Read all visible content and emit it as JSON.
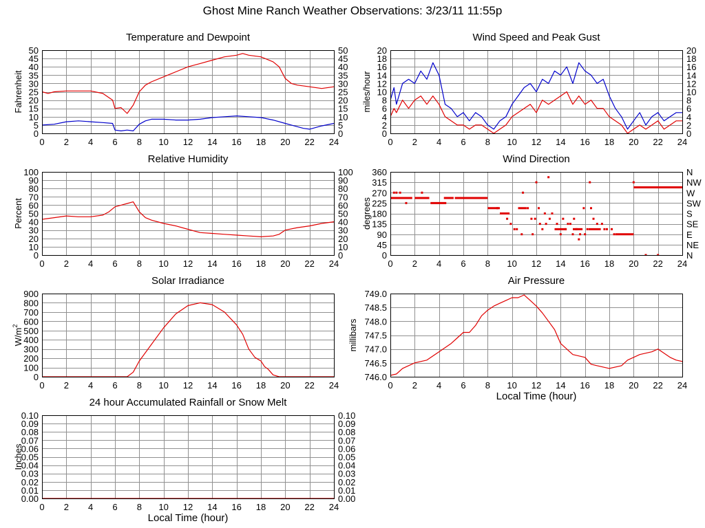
{
  "page_title": "Ghost Mine Ranch Weather Observations: 3/23/11 11:55p",
  "colors": {
    "red": "#e00000",
    "blue": "#0000cc",
    "grid": "#909090",
    "frame": "#000000"
  },
  "chart_data": [
    {
      "id": "temp",
      "type": "line",
      "title": "Temperature and Dewpoint",
      "ylabel": "Fahrenheit",
      "xlabel": "",
      "xlim": [
        0,
        24
      ],
      "ylim": [
        0,
        50
      ],
      "xticks": [
        "0",
        "2",
        "4",
        "6",
        "8",
        "10",
        "12",
        "14",
        "16",
        "18",
        "20",
        "22",
        "24"
      ],
      "yticks": [
        "0",
        "5",
        "10",
        "15",
        "20",
        "25",
        "30",
        "35",
        "40",
        "45",
        "50"
      ],
      "yticks_right": [
        "0",
        "5",
        "10",
        "15",
        "20",
        "25",
        "30",
        "35",
        "40",
        "45",
        "50"
      ],
      "series": [
        {
          "name": "Temperature",
          "color": "red",
          "x": [
            0,
            0.5,
            1,
            2,
            3,
            4,
            5,
            5.8,
            6,
            6.5,
            7,
            7.5,
            8,
            8.5,
            9,
            10,
            11,
            12,
            13,
            14,
            15,
            16,
            16.5,
            17,
            18,
            19,
            19.5,
            20,
            20.5,
            21,
            22,
            23,
            24
          ],
          "y": [
            25,
            24,
            25,
            25.5,
            25.5,
            25.5,
            24,
            20,
            15,
            15.5,
            12,
            17,
            25,
            29,
            31,
            34,
            37,
            40,
            42,
            44,
            46,
            47,
            48,
            47,
            46,
            43,
            40,
            33,
            30,
            29,
            28,
            27,
            28
          ]
        },
        {
          "name": "Dewpoint",
          "color": "blue",
          "x": [
            0,
            1,
            2,
            3,
            4,
            5,
            5.8,
            6,
            6.5,
            7,
            7.5,
            8,
            8.5,
            9,
            10,
            11,
            12,
            13,
            14,
            15,
            16,
            17,
            18,
            19,
            20,
            20.5,
            21,
            21.5,
            22,
            23,
            24
          ],
          "y": [
            5,
            5.5,
            7,
            7.5,
            7,
            6.5,
            6,
            2,
            1.5,
            2,
            1.5,
            5.5,
            7.5,
            8.5,
            8.5,
            8,
            8,
            8.5,
            9.5,
            10,
            10.5,
            10,
            9.5,
            8,
            6,
            5,
            4,
            3,
            2.5,
            4.5,
            6
          ]
        }
      ]
    },
    {
      "id": "wind",
      "type": "line",
      "title": "Wind Speed and Peak Gust",
      "ylabel": "miles/hour",
      "xlabel": "",
      "xlim": [
        0,
        24
      ],
      "ylim": [
        0,
        20
      ],
      "xticks": [
        "0",
        "2",
        "4",
        "6",
        "8",
        "10",
        "12",
        "14",
        "16",
        "18",
        "20",
        "22",
        "24"
      ],
      "yticks": [
        "0",
        "2",
        "4",
        "6",
        "8",
        "10",
        "12",
        "14",
        "16",
        "18",
        "20"
      ],
      "yticks_right": [
        "0",
        "2",
        "4",
        "6",
        "8",
        "10",
        "12",
        "14",
        "16",
        "18",
        "20"
      ],
      "series": [
        {
          "name": "Peak Gust",
          "color": "blue",
          "x": [
            0,
            0.3,
            0.5,
            1,
            1.5,
            2,
            2.5,
            3,
            3.5,
            4,
            4.5,
            5,
            5.5,
            6,
            6.5,
            7,
            7.5,
            8,
            8.5,
            9,
            9.5,
            10,
            10.5,
            11,
            11.5,
            12,
            12.5,
            13,
            13.5,
            14,
            14.5,
            15,
            15.5,
            16,
            16.5,
            17,
            17.5,
            18,
            18.5,
            19,
            19.5,
            20,
            20.5,
            21,
            21.5,
            22,
            22.5,
            23,
            23.5,
            24
          ],
          "y": [
            8,
            11,
            7,
            12,
            13,
            12,
            15,
            13,
            17,
            14,
            7,
            6,
            4,
            5,
            3,
            5,
            4,
            2,
            1,
            3,
            4,
            7,
            9,
            11,
            12,
            10,
            13,
            12,
            15,
            14,
            16,
            12,
            17,
            15,
            14,
            12,
            13,
            9,
            6,
            4,
            1,
            3,
            5,
            2,
            4,
            5,
            3,
            4,
            5,
            5
          ]
        },
        {
          "name": "Wind Speed",
          "color": "red",
          "x": [
            0,
            0.3,
            0.5,
            1,
            1.5,
            2,
            2.5,
            3,
            3.5,
            4,
            4.5,
            5,
            5.5,
            6,
            6.5,
            7,
            7.5,
            8,
            8.5,
            9,
            9.5,
            10,
            10.5,
            11,
            11.5,
            12,
            12.5,
            13,
            13.5,
            14,
            14.5,
            15,
            15.5,
            16,
            16.5,
            17,
            17.5,
            18,
            18.5,
            19,
            19.5,
            20,
            20.5,
            21,
            21.5,
            22,
            22.5,
            23,
            23.5,
            24
          ],
          "y": [
            4,
            6,
            5,
            8,
            6,
            8,
            9,
            7,
            9,
            7,
            4,
            3,
            2,
            2,
            1,
            2,
            2,
            1,
            0,
            1,
            2,
            4,
            5,
            6,
            7,
            5,
            8,
            7,
            8,
            9,
            10,
            7,
            9,
            7,
            8,
            6,
            6,
            4,
            3,
            2,
            0,
            1,
            2,
            1,
            2,
            3,
            1,
            2,
            3,
            3
          ]
        }
      ]
    },
    {
      "id": "rh",
      "type": "line",
      "title": "Relative Humidity",
      "ylabel": "Percent",
      "xlabel": "",
      "xlim": [
        0,
        24
      ],
      "ylim": [
        0,
        100
      ],
      "xticks": [
        "0",
        "2",
        "4",
        "6",
        "8",
        "10",
        "12",
        "14",
        "16",
        "18",
        "20",
        "22",
        "24"
      ],
      "yticks": [
        "0",
        "10",
        "20",
        "30",
        "40",
        "50",
        "60",
        "70",
        "80",
        "90",
        "100"
      ],
      "yticks_right": [
        "0",
        "10",
        "20",
        "30",
        "40",
        "50",
        "60",
        "70",
        "80",
        "90",
        "100"
      ],
      "series": [
        {
          "name": "Relative Humidity",
          "color": "red",
          "x": [
            0,
            1,
            2,
            3,
            4,
            5,
            5.5,
            6,
            6.5,
            7,
            7.5,
            8,
            8.5,
            9,
            10,
            11,
            12,
            13,
            14,
            15,
            16,
            17,
            18,
            19,
            19.5,
            20,
            21,
            22,
            23,
            24
          ],
          "y": [
            43,
            45,
            47,
            46,
            46,
            48,
            52,
            58,
            60,
            62,
            64,
            52,
            45,
            42,
            38,
            35,
            31,
            27,
            26,
            25,
            24,
            23,
            22,
            23,
            25,
            30,
            33,
            35,
            38,
            40
          ]
        }
      ]
    },
    {
      "id": "dir",
      "type": "scatter",
      "title": "Wind Direction",
      "ylabel": "degrees",
      "xlabel": "",
      "xlim": [
        0,
        24
      ],
      "ylim": [
        0,
        360
      ],
      "xticks": [
        "0",
        "2",
        "4",
        "6",
        "8",
        "10",
        "12",
        "14",
        "16",
        "18",
        "20",
        "22",
        "24"
      ],
      "yticks": [
        "0",
        "45",
        "90",
        "135",
        "180",
        "225",
        "270",
        "315",
        "360"
      ],
      "yticks_right": [
        "N",
        "NE",
        "E",
        "SE",
        "S",
        "SW",
        "W",
        "NW",
        "N"
      ],
      "series": [
        {
          "name": "Wind Direction",
          "color": "red",
          "segments": [
            {
              "x0": 0,
              "x1": 1.8,
              "y": 247
            },
            {
              "x0": 2,
              "x1": 3.2,
              "y": 247
            },
            {
              "x0": 3.3,
              "x1": 4.6,
              "y": 225
            },
            {
              "x0": 4.4,
              "x1": 5.2,
              "y": 247
            },
            {
              "x0": 5.3,
              "x1": 8,
              "y": 247
            },
            {
              "x0": 8,
              "x1": 9,
              "y": 203
            },
            {
              "x0": 9,
              "x1": 9.8,
              "y": 180
            },
            {
              "x0": 10.5,
              "x1": 11.2,
              "y": 203
            },
            {
              "x0": 13.5,
              "x1": 14.5,
              "y": 112
            },
            {
              "x0": 15,
              "x1": 15.8,
              "y": 112
            },
            {
              "x0": 16.3,
              "x1": 17.3,
              "y": 112
            },
            {
              "x0": 18.5,
              "x1": 20,
              "y": 90
            },
            {
              "x0": 20,
              "x1": 24,
              "y": 293
            }
          ],
          "x": [
            0.3,
            0.5,
            0.8,
            1.3,
            2.6,
            3.1,
            8.8,
            9.3,
            9.6,
            9.9,
            10.2,
            10.4,
            10.8,
            10.9,
            11.3,
            11.6,
            11.7,
            11.9,
            12.0,
            12.2,
            12.3,
            12.5,
            12.7,
            12.8,
            13.0,
            13.1,
            13.3,
            13.7,
            14.0,
            14.2,
            14.4,
            14.6,
            14.8,
            15.0,
            15.1,
            15.3,
            15.5,
            15.6,
            15.9,
            16.0,
            16.2,
            16.4,
            16.5,
            16.7,
            17.0,
            17.4,
            17.6,
            17.8,
            18.2,
            18.4,
            20.0,
            21.0,
            22.0
          ],
          "y": [
            270,
            270,
            270,
            225,
            270,
            247,
            203,
            180,
            157,
            135,
            112,
            112,
            90,
            270,
            203,
            157,
            90,
            157,
            315,
            203,
            135,
            112,
            180,
            135,
            337,
            157,
            180,
            135,
            90,
            157,
            112,
            135,
            135,
            90,
            157,
            112,
            68,
            90,
            203,
            90,
            112,
            315,
            203,
            157,
            135,
            135,
            112,
            112,
            112,
            90,
            315,
            0,
            0
          ]
        }
      ]
    },
    {
      "id": "solar",
      "type": "line",
      "title": "Solar Irradiance",
      "ylabel": "W/m2",
      "ylabel_base": "W/m",
      "ylabel_sup": "2",
      "xlabel": "",
      "xlim": [
        0,
        24
      ],
      "ylim": [
        0,
        900
      ],
      "xticks": [
        "0",
        "2",
        "4",
        "6",
        "8",
        "10",
        "12",
        "14",
        "16",
        "18",
        "20",
        "22",
        "24"
      ],
      "yticks": [
        "0",
        "100",
        "200",
        "300",
        "400",
        "500",
        "600",
        "700",
        "800",
        "900"
      ],
      "yticks_right": [],
      "series": [
        {
          "name": "Solar Irradiance",
          "color": "red",
          "x": [
            0,
            6,
            7,
            7.5,
            8,
            9,
            10,
            11,
            12,
            13,
            14,
            15,
            16,
            16.5,
            17,
            17.5,
            18,
            18.3,
            18.6,
            19,
            19.5,
            20,
            24
          ],
          "y": [
            0,
            0,
            0,
            50,
            170,
            350,
            530,
            680,
            770,
            800,
            780,
            700,
            560,
            460,
            300,
            210,
            170,
            110,
            80,
            20,
            0,
            0,
            0
          ]
        }
      ]
    },
    {
      "id": "press",
      "type": "line",
      "title": "Air Pressure",
      "ylabel": "millibars",
      "xlabel": "Local Time (hour)",
      "xlim": [
        0,
        24
      ],
      "ylim": [
        746.0,
        749.0
      ],
      "xticks": [
        "0",
        "2",
        "4",
        "6",
        "8",
        "10",
        "12",
        "14",
        "16",
        "18",
        "20",
        "22",
        "24"
      ],
      "yticks": [
        "746.0",
        "746.5",
        "747.0",
        "747.5",
        "748.0",
        "748.5",
        "749.0"
      ],
      "yticks_right": [],
      "series": [
        {
          "name": "Air Pressure",
          "color": "red",
          "x": [
            0,
            0.5,
            1,
            2,
            3,
            4,
            5,
            5.5,
            6,
            6.5,
            7,
            7.5,
            8,
            8.5,
            9,
            9.5,
            10,
            10.5,
            11,
            11.5,
            12,
            12.5,
            13,
            13.5,
            14,
            15,
            16,
            16.5,
            17,
            18,
            19,
            19.5,
            20,
            20.5,
            21,
            21.5,
            22,
            22.5,
            23,
            23.5,
            24
          ],
          "y": [
            746.05,
            746.1,
            746.3,
            746.5,
            746.6,
            746.9,
            747.2,
            747.4,
            747.6,
            747.6,
            747.85,
            748.2,
            748.4,
            748.55,
            748.65,
            748.75,
            748.85,
            748.85,
            748.95,
            748.75,
            748.55,
            748.3,
            748.0,
            747.7,
            747.2,
            746.8,
            746.7,
            746.45,
            746.4,
            746.3,
            746.4,
            746.6,
            746.7,
            746.8,
            746.85,
            746.9,
            747.0,
            746.85,
            746.7,
            746.6,
            746.55
          ]
        }
      ]
    },
    {
      "id": "rain",
      "type": "line",
      "title": "24 hour Accumulated Rainfall or Snow Melt",
      "ylabel": "Inches",
      "xlabel": "Local Time (hour)",
      "xlim": [
        0,
        24
      ],
      "ylim": [
        0,
        0.1
      ],
      "xticks": [
        "0",
        "2",
        "4",
        "6",
        "8",
        "10",
        "12",
        "14",
        "16",
        "18",
        "20",
        "22",
        "24"
      ],
      "yticks": [
        "0.00",
        "0.01",
        "0.02",
        "0.03",
        "0.04",
        "0.05",
        "0.06",
        "0.07",
        "0.08",
        "0.09",
        "0.10"
      ],
      "yticks_right": [
        "0.00",
        "0.01",
        "0.02",
        "0.03",
        "0.04",
        "0.05",
        "0.06",
        "0.07",
        "0.08",
        "0.09",
        "0.10"
      ],
      "series": [
        {
          "name": "Rainfall",
          "color": "red",
          "x": [
            0,
            24
          ],
          "y": [
            0,
            0
          ]
        }
      ]
    }
  ]
}
